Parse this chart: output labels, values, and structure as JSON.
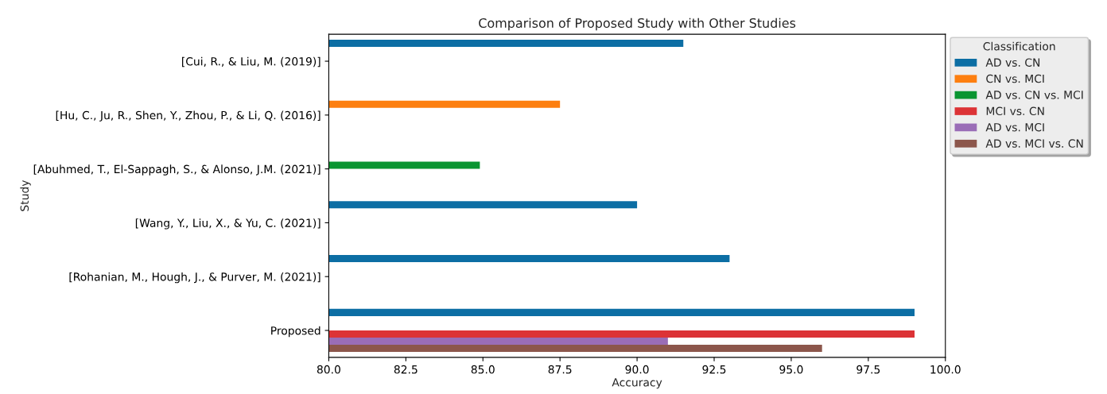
{
  "chart_data": {
    "type": "bar",
    "orientation": "horizontal",
    "title": "Comparison of Proposed Study with Other Studies",
    "xlabel": "Accuracy",
    "ylabel": "Study",
    "legend_title": "Classification",
    "legend": "top right",
    "categories": [
      "[Cui, R., & Liu, M. (2019)]",
      "[Hu, C., Ju, R., Shen, Y., Zhou, P., & Li, Q. (2016)]",
      "[Abuhmed, T., El-Sappagh, S., & Alonso, J.M. (2021)]",
      "[Wang, Y., Liu, X., & Yu, C. (2021)]",
      "[Rohanian, M., Hough, J., & Purver, M. (2021)]",
      "Proposed"
    ],
    "series": [
      {
        "name": "AD vs. CN",
        "color": "#0c6ea4",
        "values": [
          91.5,
          null,
          null,
          90.0,
          93.0,
          99.0
        ]
      },
      {
        "name": "CN vs. MCI",
        "color": "#fd7f10",
        "values": [
          null,
          87.5,
          null,
          null,
          null,
          null
        ]
      },
      {
        "name": "AD vs. CN vs. MCI",
        "color": "#0a9531",
        "values": [
          null,
          null,
          84.9,
          null,
          null,
          null
        ]
      },
      {
        "name": "MCI vs. CN",
        "color": "#dc3336",
        "values": [
          null,
          null,
          null,
          null,
          null,
          99.0
        ]
      },
      {
        "name": "AD vs. MCI",
        "color": "#9a6db7",
        "values": [
          null,
          null,
          null,
          null,
          null,
          91.0
        ]
      },
      {
        "name": "AD vs. MCI vs. CN",
        "color": "#8c564b",
        "values": [
          null,
          null,
          null,
          null,
          null,
          96.0
        ]
      }
    ],
    "xlim": [
      80,
      100
    ],
    "xticks": [
      {
        "value": 80,
        "label": "80.0"
      },
      82.5,
      {
        "value": 85,
        "label": "85.0"
      },
      87.5,
      {
        "value": 90,
        "label": "90.0"
      },
      92.5,
      {
        "value": 95,
        "label": "95.0"
      },
      97.5,
      {
        "value": 100,
        "label": "100.0"
      }
    ]
  }
}
